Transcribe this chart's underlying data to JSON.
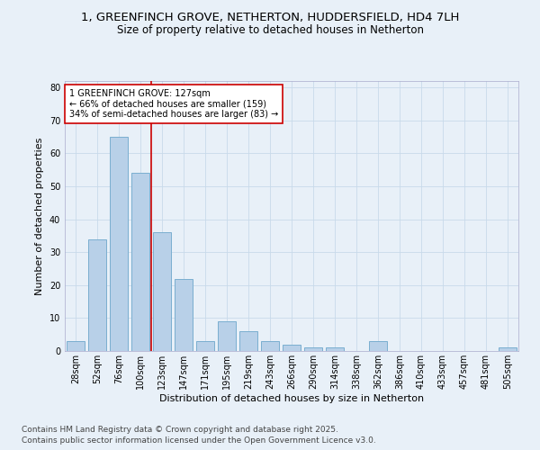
{
  "title_line1": "1, GREENFINCH GROVE, NETHERTON, HUDDERSFIELD, HD4 7LH",
  "title_line2": "Size of property relative to detached houses in Netherton",
  "xlabel": "Distribution of detached houses by size in Netherton",
  "ylabel": "Number of detached properties",
  "categories": [
    "28sqm",
    "52sqm",
    "76sqm",
    "100sqm",
    "123sqm",
    "147sqm",
    "171sqm",
    "195sqm",
    "219sqm",
    "243sqm",
    "266sqm",
    "290sqm",
    "314sqm",
    "338sqm",
    "362sqm",
    "386sqm",
    "410sqm",
    "433sqm",
    "457sqm",
    "481sqm",
    "505sqm"
  ],
  "values": [
    3,
    34,
    65,
    54,
    36,
    22,
    3,
    9,
    6,
    3,
    2,
    1,
    1,
    0,
    3,
    0,
    0,
    0,
    0,
    0,
    1
  ],
  "bar_color": "#b8d0e8",
  "bar_edge_color": "#7aaed0",
  "marker_line_index": 4,
  "marker_label_line1": "1 GREENFINCH GROVE: 127sqm",
  "marker_label_line2": "← 66% of detached houses are smaller (159)",
  "marker_label_line3": "34% of semi-detached houses are larger (83) →",
  "annotation_box_color": "#ffffff",
  "annotation_box_edge": "#cc0000",
  "vline_color": "#cc0000",
  "ylim": [
    0,
    82
  ],
  "yticks": [
    0,
    10,
    20,
    30,
    40,
    50,
    60,
    70,
    80
  ],
  "grid_color": "#c8daea",
  "bg_color": "#e8f0f8",
  "footer_line1": "Contains HM Land Registry data © Crown copyright and database right 2025.",
  "footer_line2": "Contains public sector information licensed under the Open Government Licence v3.0.",
  "title_fontsize": 9.5,
  "subtitle_fontsize": 8.5,
  "axis_label_fontsize": 8,
  "tick_fontsize": 7,
  "annotation_fontsize": 7,
  "footer_fontsize": 6.5
}
